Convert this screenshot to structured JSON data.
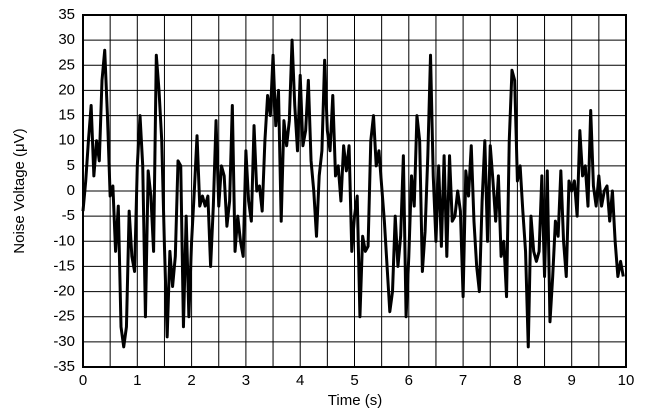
{
  "chart_data": {
    "type": "line",
    "x_label": "Time (s)",
    "y_label": "Noise Voltage (μV)",
    "xlim": [
      0,
      10
    ],
    "ylim": [
      -35,
      35
    ],
    "xticks": [
      0,
      1,
      2,
      3,
      4,
      5,
      6,
      7,
      8,
      9,
      10
    ],
    "x_minor_ticks": [
      0.5,
      1.5,
      2.5,
      3.5,
      4.5,
      5.5,
      6.5,
      7.5,
      8.5,
      9.5
    ],
    "yticks": [
      -35,
      -30,
      -25,
      -20,
      -15,
      -10,
      -5,
      0,
      5,
      10,
      15,
      20,
      25,
      30,
      35
    ],
    "grid": true,
    "series": [
      {
        "color": "#000000",
        "x": [
          0,
          0.05,
          0.1,
          0.15,
          0.2,
          0.25,
          0.3,
          0.35,
          0.4,
          0.45,
          0.5,
          0.55,
          0.6,
          0.65,
          0.7,
          0.75,
          0.8,
          0.85,
          0.9,
          0.95,
          1,
          1.05,
          1.1,
          1.15,
          1.2,
          1.25,
          1.3,
          1.35,
          1.4,
          1.45,
          1.5,
          1.55,
          1.6,
          1.65,
          1.7,
          1.75,
          1.8,
          1.85,
          1.9,
          1.95,
          2,
          2.05,
          2.1,
          2.15,
          2.2,
          2.25,
          2.3,
          2.35,
          2.4,
          2.45,
          2.5,
          2.55,
          2.6,
          2.65,
          2.7,
          2.75,
          2.8,
          2.85,
          2.9,
          2.95,
          3,
          3.05,
          3.1,
          3.15,
          3.2,
          3.25,
          3.3,
          3.35,
          3.4,
          3.45,
          3.5,
          3.55,
          3.6,
          3.65,
          3.7,
          3.75,
          3.8,
          3.85,
          3.9,
          3.95,
          4,
          4.05,
          4.1,
          4.15,
          4.2,
          4.25,
          4.3,
          4.35,
          4.4,
          4.45,
          4.5,
          4.55,
          4.6,
          4.65,
          4.7,
          4.75,
          4.8,
          4.85,
          4.9,
          4.95,
          5,
          5.05,
          5.1,
          5.15,
          5.2,
          5.25,
          5.3,
          5.35,
          5.4,
          5.45,
          5.5,
          5.55,
          5.6,
          5.65,
          5.7,
          5.75,
          5.8,
          5.85,
          5.9,
          5.95,
          6,
          6.05,
          6.1,
          6.15,
          6.2,
          6.25,
          6.3,
          6.35,
          6.4,
          6.45,
          6.5,
          6.55,
          6.6,
          6.65,
          6.7,
          6.75,
          6.8,
          6.85,
          6.9,
          6.95,
          7,
          7.05,
          7.1,
          7.15,
          7.2,
          7.25,
          7.3,
          7.35,
          7.4,
          7.45,
          7.5,
          7.55,
          7.6,
          7.65,
          7.7,
          7.75,
          7.8,
          7.85,
          7.9,
          7.95,
          8,
          8.05,
          8.1,
          8.15,
          8.2,
          8.25,
          8.3,
          8.35,
          8.4,
          8.45,
          8.5,
          8.55,
          8.6,
          8.65,
          8.7,
          8.75,
          8.8,
          8.85,
          8.9,
          8.95,
          9,
          9.05,
          9.1,
          9.15,
          9.2,
          9.25,
          9.3,
          9.35,
          9.4,
          9.45,
          9.5,
          9.55,
          9.6,
          9.65,
          9.7,
          9.75,
          9.8,
          9.85,
          9.9,
          9.95
        ],
        "values": [
          -4,
          2,
          10,
          17,
          3,
          10,
          6,
          22,
          28,
          15,
          -1,
          1,
          -12,
          -3,
          -27,
          -31,
          -27,
          -4,
          -13,
          -16,
          5,
          15,
          5,
          -25,
          4,
          -1,
          -12,
          27,
          20,
          10,
          -11,
          -29,
          -12,
          -19,
          -13,
          6,
          5,
          -27,
          -5,
          -25,
          -10,
          0,
          11,
          -3,
          -1,
          -3,
          -1,
          -15,
          -3,
          14,
          -3,
          5,
          3,
          -7,
          -2,
          17,
          -12,
          -5,
          -10,
          -13,
          8,
          -2,
          -6,
          13,
          0,
          1,
          -4,
          10,
          19,
          15,
          27,
          13,
          20,
          -6,
          14,
          9,
          14,
          30,
          17,
          8,
          23,
          9,
          12,
          22,
          6,
          0,
          -9,
          3,
          8,
          26,
          12,
          8,
          19,
          3,
          5,
          -2,
          9,
          4,
          9,
          -12,
          -5,
          -1,
          -25,
          -9,
          -12,
          -11,
          10,
          15,
          5,
          8,
          1,
          -6,
          -15,
          -24,
          -20,
          -5,
          -15,
          -9,
          7,
          -25,
          -13,
          3,
          -3,
          15,
          10,
          -16,
          -8,
          7,
          27,
          3,
          -10,
          5,
          -11,
          7,
          -13,
          7,
          -6,
          -5,
          0,
          -4,
          -21,
          4,
          -1,
          9,
          -6,
          -15,
          -20,
          -2,
          10,
          -10,
          9,
          2,
          -6,
          3,
          -13,
          -10,
          -21,
          10,
          24,
          22,
          2,
          5,
          -4,
          -12,
          -31,
          -5,
          -12,
          -14,
          -12,
          3,
          -17,
          4,
          -26,
          -17,
          -6,
          -9,
          4,
          -10,
          -17,
          2,
          0,
          2,
          -5,
          12,
          3,
          5,
          -3,
          16,
          1,
          -3,
          3,
          -3,
          0,
          1,
          -6,
          0,
          -10,
          -17,
          -14,
          -17
        ]
      }
    ]
  }
}
